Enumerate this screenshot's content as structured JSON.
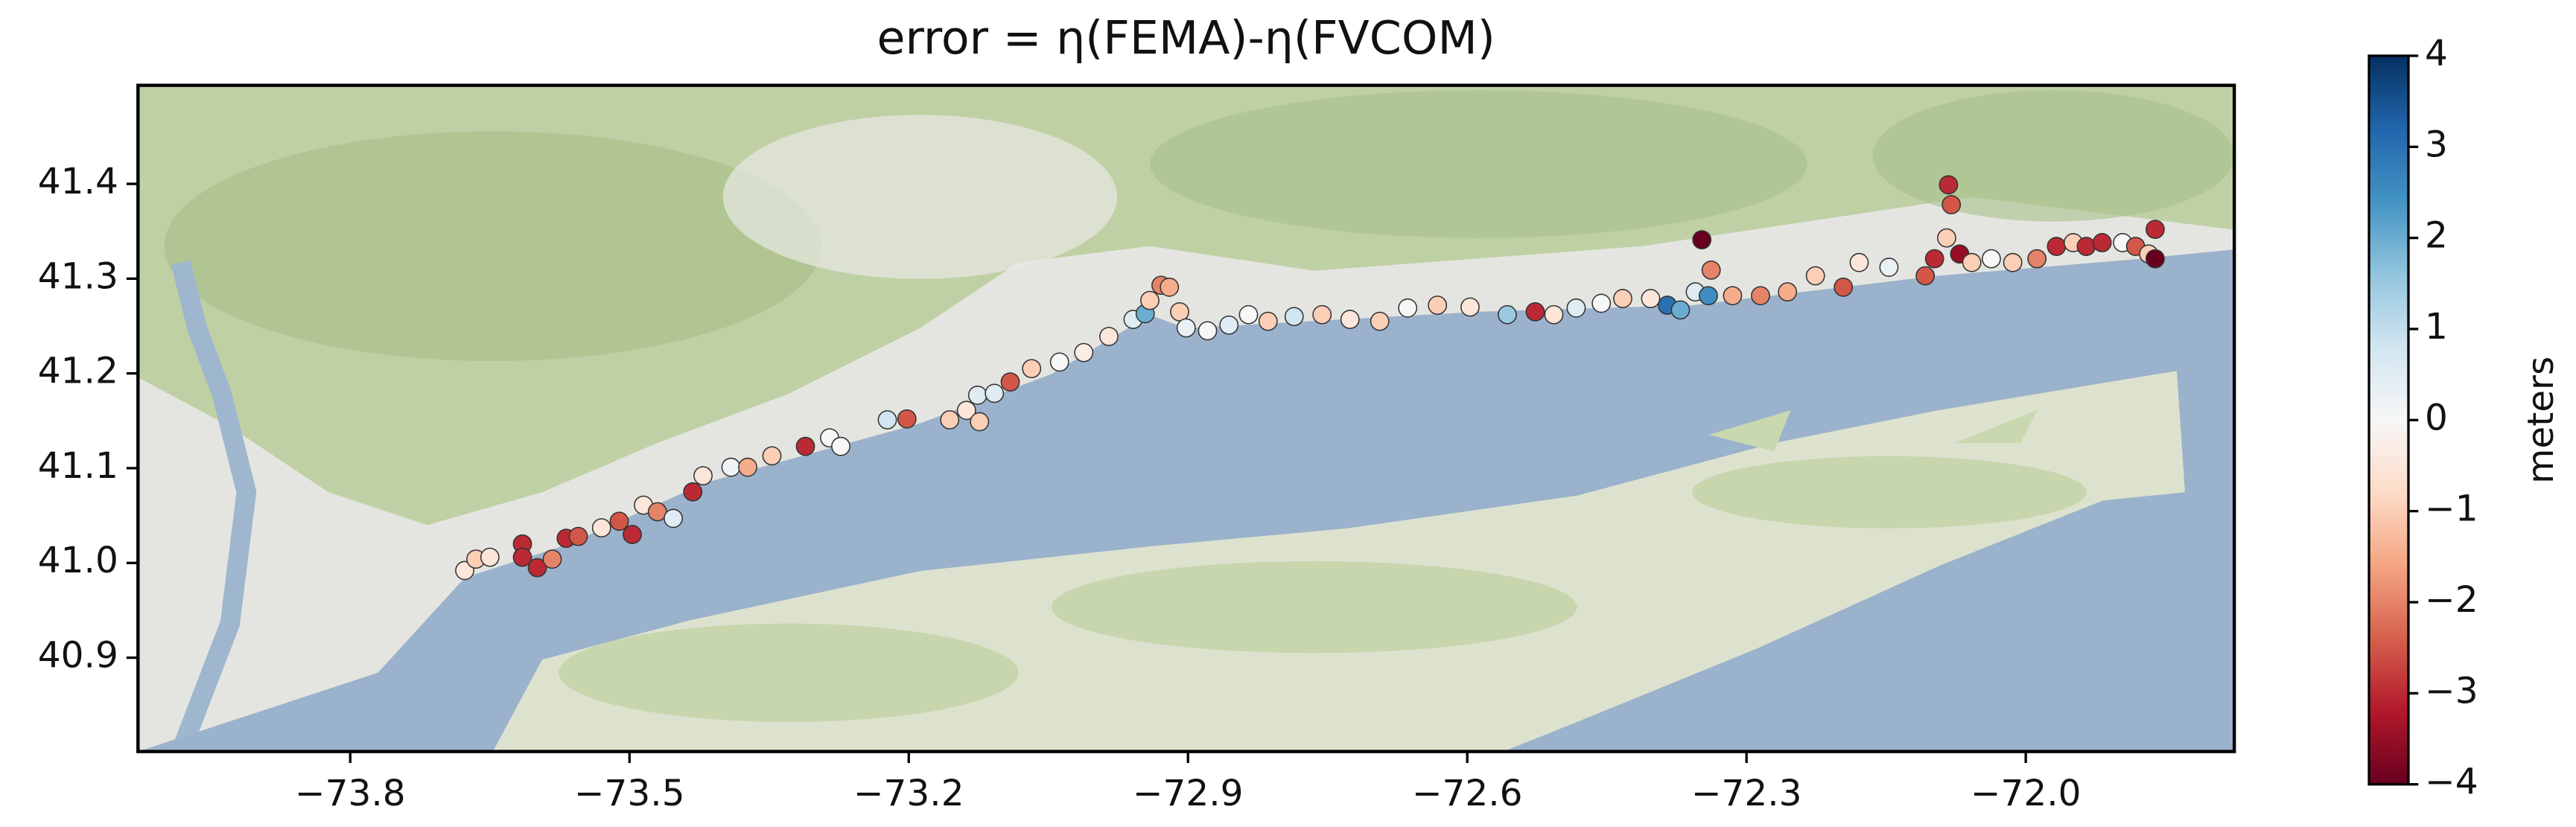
{
  "chart_data": {
    "type": "scatter",
    "title": "error = η(FEMA)-η(FVCOM)",
    "colorbar_label": "meters",
    "colormap": "RdBu",
    "xlim": [
      -74.028,
      -71.776
    ],
    "ylim": [
      40.801,
      41.504
    ],
    "xticks": [
      {
        "value": -73.8,
        "label": "−73.8"
      },
      {
        "value": -73.5,
        "label": "−73.5"
      },
      {
        "value": -73.2,
        "label": "−73.2"
      },
      {
        "value": -72.9,
        "label": "−72.9"
      },
      {
        "value": -72.6,
        "label": "−72.6"
      },
      {
        "value": -72.3,
        "label": "−72.3"
      },
      {
        "value": -72.0,
        "label": "−72.0"
      }
    ],
    "yticks": [
      40.9,
      {
        "value": 41.0,
        "label": "41.0"
      },
      41.1,
      41.2,
      41.3,
      41.4
    ],
    "clim": [
      -4,
      4
    ],
    "cticks": [
      4,
      3,
      2,
      1,
      0,
      {
        "value": -1,
        "label": "−1"
      },
      {
        "value": -2,
        "label": "−2"
      },
      {
        "value": -3,
        "label": "−3"
      },
      {
        "value": -4,
        "label": "−4"
      }
    ],
    "x": [
      -73.677,
      -73.665,
      -73.65,
      -73.615,
      -73.615,
      -73.599,
      -73.583,
      -73.568,
      -73.555,
      -73.53,
      -73.511,
      -73.497,
      -73.485,
      -73.47,
      -73.453,
      -73.432,
      -73.421,
      -73.391,
      -73.373,
      -73.347,
      -73.311,
      -73.285,
      -73.273,
      -73.223,
      -73.202,
      -73.156,
      -73.138,
      -73.124,
      -73.126,
      -73.108,
      -73.091,
      -73.068,
      -73.038,
      -73.012,
      -72.985,
      -72.959,
      -72.946,
      -72.941,
      -72.929,
      -72.92,
      -72.909,
      -72.902,
      -72.879,
      -72.856,
      -72.835,
      -72.814,
      -72.786,
      -72.756,
      -72.726,
      -72.694,
      -72.664,
      -72.632,
      -72.597,
      -72.557,
      -72.527,
      -72.507,
      -72.483,
      -72.456,
      -72.433,
      -72.403,
      -72.385,
      -72.371,
      -72.355,
      -72.348,
      -72.338,
      -72.341,
      -72.315,
      -72.285,
      -72.256,
      -72.226,
      -72.196,
      -72.179,
      -72.147,
      -72.108,
      -72.098,
      -72.085,
      -72.08,
      -72.083,
      -72.071,
      -72.058,
      -72.037,
      -72.014,
      -71.988,
      -71.967,
      -71.949,
      -71.935,
      -71.918,
      -71.896,
      -71.882,
      -71.868,
      -71.861,
      -71.861
    ],
    "y": [
      40.992,
      41.004,
      41.006,
      41.02,
      41.006,
      40.995,
      41.004,
      41.026,
      41.028,
      41.037,
      41.044,
      41.03,
      41.061,
      41.054,
      41.047,
      41.075,
      41.092,
      41.101,
      41.101,
      41.113,
      41.123,
      41.132,
      41.123,
      41.151,
      41.152,
      41.151,
      41.161,
      41.149,
      41.177,
      41.179,
      41.191,
      41.205,
      41.212,
      41.222,
      41.239,
      41.257,
      41.263,
      41.277,
      41.293,
      41.291,
      41.265,
      41.248,
      41.245,
      41.251,
      41.262,
      41.255,
      41.26,
      41.262,
      41.257,
      41.255,
      41.269,
      41.272,
      41.27,
      41.262,
      41.265,
      41.262,
      41.269,
      41.274,
      41.279,
      41.279,
      41.272,
      41.267,
      41.286,
      41.341,
      41.309,
      41.282,
      41.282,
      41.282,
      41.286,
      41.303,
      41.291,
      41.317,
      41.312,
      41.303,
      41.321,
      41.343,
      41.378,
      41.399,
      41.326,
      41.317,
      41.321,
      41.317,
      41.321,
      41.334,
      41.338,
      41.334,
      41.338,
      41.338,
      41.334,
      41.326,
      41.352,
      41.321
    ],
    "values": [
      -0.5,
      -1,
      -0.5,
      -3,
      -3,
      -3,
      -2,
      -3,
      -2.5,
      -0.5,
      -2.5,
      -3,
      -0.5,
      -2,
      0.5,
      -3,
      -0.5,
      0.2,
      -1.5,
      -1,
      -3,
      0,
      0,
      0.8,
      -2.5,
      -1,
      -0.5,
      -1,
      0.5,
      0.5,
      -2.5,
      -1,
      0,
      -0.3,
      -0.5,
      0.5,
      2,
      -1,
      -2,
      -1.5,
      -1,
      0.3,
      0,
      0.5,
      0,
      -1,
      0.8,
      -1,
      -0.5,
      -1,
      0,
      -1,
      -0.5,
      1.5,
      -3,
      -0.5,
      0.5,
      0,
      -1,
      -0.5,
      3,
      2,
      0.5,
      -4,
      -2,
      2.5,
      -1.5,
      -2,
      -1.5,
      -1,
      -2.5,
      -0.5,
      0.3,
      -2.5,
      -3,
      -1,
      -2.5,
      -3,
      -3.5,
      -1,
      0,
      -1,
      -2,
      -3,
      -1,
      -3,
      -3,
      0,
      -2.5,
      -1,
      -3,
      -4
    ]
  }
}
